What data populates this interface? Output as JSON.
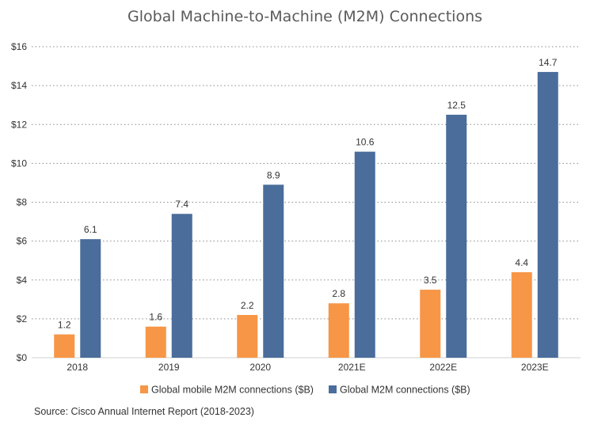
{
  "chart_data": {
    "type": "bar",
    "title": "Global Machine-to-Machine (M2M) Connections",
    "categories": [
      "2018",
      "2019",
      "2020",
      "2021E",
      "2022E",
      "2023E"
    ],
    "series": [
      {
        "name": "Global mobile M2M connections ($B)",
        "color": "#f79646",
        "values": [
          1.2,
          1.6,
          2.2,
          2.8,
          3.5,
          4.4
        ],
        "labels": [
          "1.2",
          "1.6",
          "2.2",
          "2.8",
          "3.5",
          "4.4"
        ]
      },
      {
        "name": "Global M2M connections ($B)",
        "color": "#4a6d9b",
        "values": [
          6.1,
          7.4,
          8.9,
          10.6,
          12.5,
          14.7
        ],
        "labels": [
          "6.1",
          "7.4",
          "8.9",
          "10.6",
          "12.5",
          "14.7"
        ]
      }
    ],
    "ylim": [
      0,
      16
    ],
    "yticks": [
      0,
      2,
      4,
      6,
      8,
      10,
      12,
      14,
      16
    ],
    "ytick_labels": [
      "$0",
      "$2",
      "$4",
      "$6",
      "$8",
      "$10",
      "$12",
      "$14",
      "$16"
    ],
    "xlabel": "",
    "ylabel": "",
    "grid": true,
    "legend_position": "bottom",
    "source": "Source: Cisco Annual Internet Report (2018-2023)"
  }
}
